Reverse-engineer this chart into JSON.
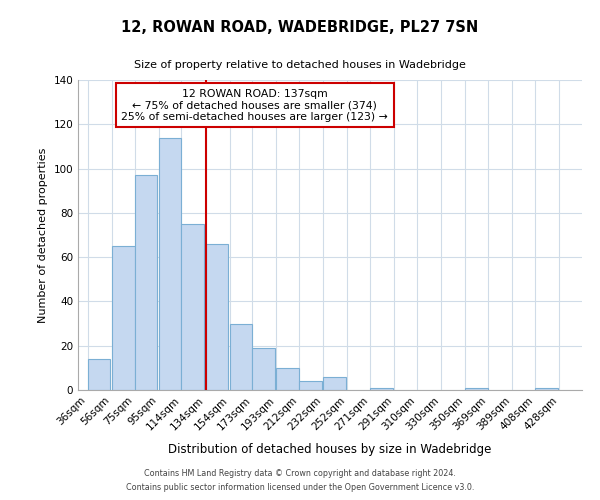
{
  "title": "12, ROWAN ROAD, WADEBRIDGE, PL27 7SN",
  "subtitle": "Size of property relative to detached houses in Wadebridge",
  "xlabel": "Distribution of detached houses by size in Wadebridge",
  "ylabel": "Number of detached properties",
  "bar_left_edges": [
    36,
    56,
    75,
    95,
    114,
    134,
    154,
    173,
    193,
    212,
    232,
    252,
    271,
    291,
    310,
    330,
    350,
    369,
    389,
    408
  ],
  "bar_heights": [
    14,
    65,
    97,
    114,
    75,
    66,
    30,
    19,
    10,
    4,
    6,
    0,
    1,
    0,
    0,
    0,
    1,
    0,
    0,
    1
  ],
  "bin_width": 19,
  "tick_labels": [
    "36sqm",
    "56sqm",
    "75sqm",
    "95sqm",
    "114sqm",
    "134sqm",
    "154sqm",
    "173sqm",
    "193sqm",
    "212sqm",
    "232sqm",
    "252sqm",
    "271sqm",
    "291sqm",
    "310sqm",
    "330sqm",
    "350sqm",
    "369sqm",
    "389sqm",
    "408sqm",
    "428sqm"
  ],
  "tick_positions": [
    36,
    56,
    75,
    95,
    114,
    134,
    154,
    173,
    193,
    212,
    232,
    252,
    271,
    291,
    310,
    330,
    350,
    369,
    389,
    408,
    428
  ],
  "bar_color": "#c5d8f0",
  "bar_edge_color": "#7bafd4",
  "vline_x": 134,
  "vline_color": "#cc0000",
  "ylim": [
    0,
    140
  ],
  "yticks": [
    0,
    20,
    40,
    60,
    80,
    100,
    120,
    140
  ],
  "annotation_title": "12 ROWAN ROAD: 137sqm",
  "annotation_line1": "← 75% of detached houses are smaller (374)",
  "annotation_line2": "25% of semi-detached houses are larger (123) →",
  "footer1": "Contains HM Land Registry data © Crown copyright and database right 2024.",
  "footer2": "Contains public sector information licensed under the Open Government Licence v3.0.",
  "background_color": "#ffffff",
  "grid_color": "#d0dce8"
}
